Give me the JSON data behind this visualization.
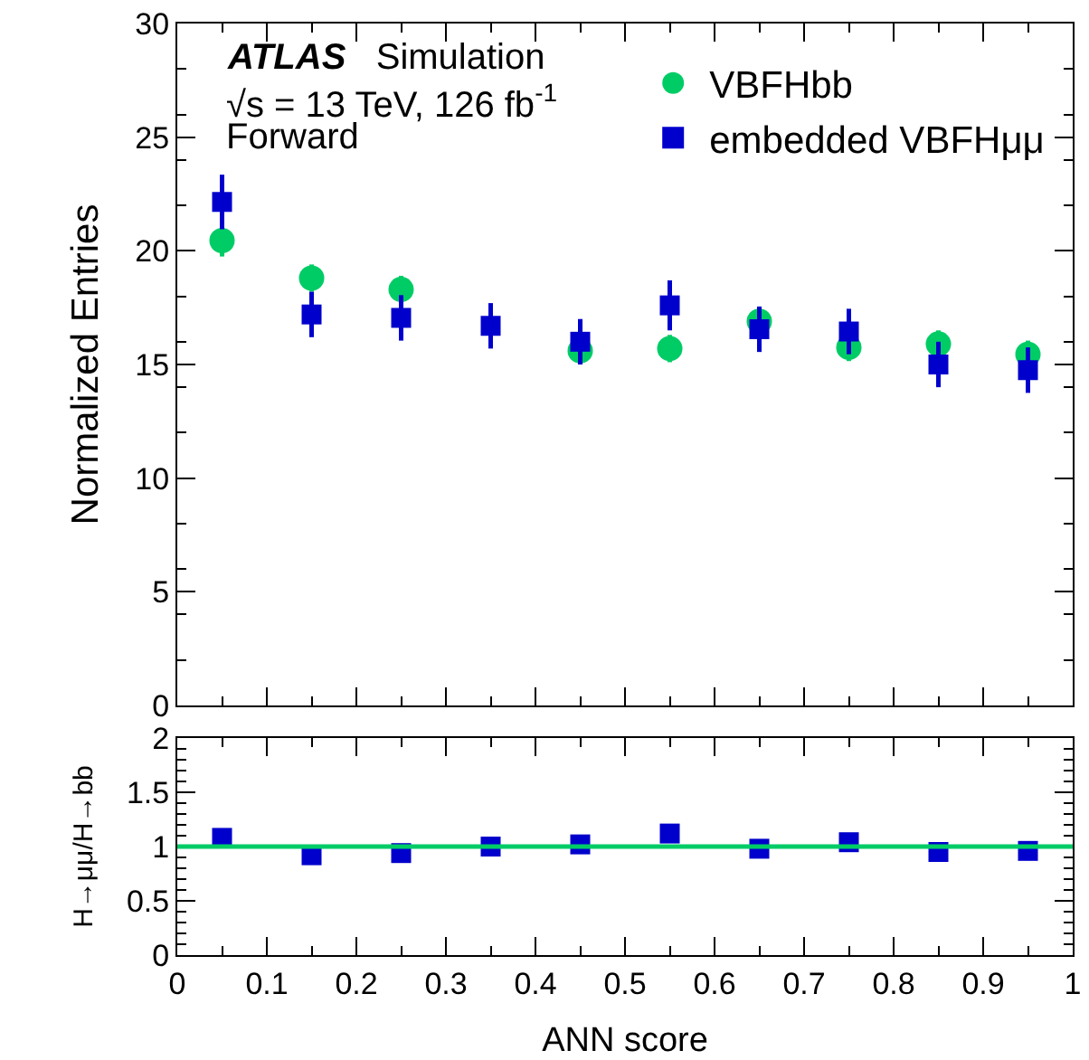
{
  "chart_data": [
    {
      "type": "scatter",
      "ylabel": "Normalized Entries",
      "x": [
        0.05,
        0.15,
        0.25,
        0.35,
        0.45,
        0.55,
        0.65,
        0.75,
        0.85,
        0.95
      ],
      "series": [
        {
          "name": "VBFHbb",
          "color": "#00cc66",
          "marker": "circle",
          "values": [
            20.45,
            18.8,
            18.3,
            null,
            15.6,
            15.7,
            16.9,
            15.75,
            15.9,
            15.45
          ],
          "errors": [
            0.7,
            0.6,
            0.6,
            null,
            0.6,
            0.6,
            null,
            0.6,
            0.6,
            0.6
          ]
        },
        {
          "name": "embedded VBFHμμ",
          "color": "#0000cc",
          "marker": "square",
          "values": [
            22.15,
            17.2,
            17.05,
            16.7,
            16.0,
            17.6,
            16.55,
            16.45,
            15.0,
            14.75
          ],
          "errors": [
            1.2,
            1.0,
            1.0,
            1.0,
            1.0,
            1.1,
            1.0,
            1.0,
            1.0,
            1.0
          ]
        }
      ],
      "annotations": [
        "ATLAS Simulation",
        "√s = 13 TeV, 126 fb$^{-1}$",
        "Forward"
      ],
      "xlim": [
        0,
        1
      ],
      "xticks": [
        0,
        0.1,
        0.2,
        0.3,
        0.4,
        0.5,
        0.6,
        0.7,
        0.8,
        0.9,
        1
      ],
      "ylim": [
        0,
        30
      ],
      "yticks": [
        0,
        5,
        10,
        15,
        20,
        25,
        30
      ],
      "tick_labels": "y",
      "legend": "top right"
    },
    {
      "type": "scatter",
      "ylabel": "H→μμ/H→bb",
      "xlabel": "ANN score",
      "x": [
        0.05,
        0.15,
        0.25,
        0.35,
        0.45,
        0.55,
        0.65,
        0.75,
        0.85,
        0.95
      ],
      "series": [
        {
          "color": "#0000cc",
          "marker": "square",
          "values": [
            1.08,
            0.92,
            0.94,
            1.0,
            1.02,
            1.12,
            0.98,
            1.04,
            0.95,
            0.96
          ]
        }
      ],
      "ref_lines": [
        {
          "axis": "y",
          "value": 1,
          "color": "#00cc66"
        }
      ],
      "xlim": [
        0,
        1
      ],
      "xticks": [
        0,
        0.1,
        0.2,
        0.3,
        0.4,
        0.5,
        0.6,
        0.7,
        0.8,
        0.9,
        1
      ],
      "ylim": [
        0,
        2
      ],
      "yticks": [
        0,
        0.5,
        1,
        1.5,
        2
      ],
      "legend": false
    }
  ]
}
